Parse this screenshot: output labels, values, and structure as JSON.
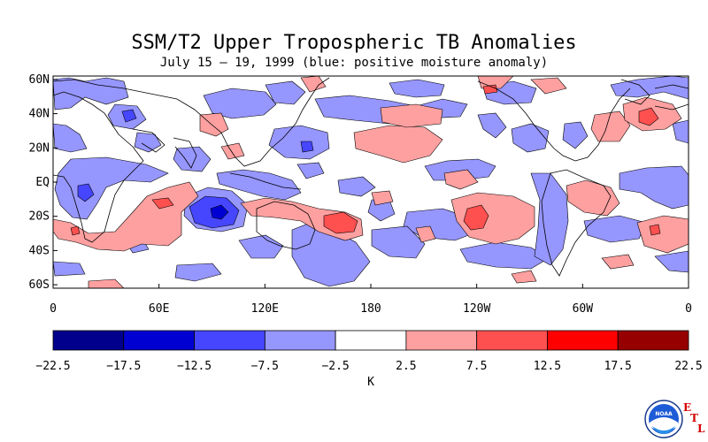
{
  "title": "SSM/T2 Upper Tropospheric TB Anomalies",
  "subtitle": "July 15 – 19, 1999 (blue: positive moisture anomaly)",
  "map": {
    "lat_labels": [
      "60N",
      "40N",
      "20N",
      "EQ",
      "20S",
      "40S",
      "60S"
    ],
    "lat_values": [
      60,
      40,
      20,
      0,
      -20,
      -40,
      -60
    ],
    "lon_labels": [
      "0",
      "60E",
      "120E",
      "180",
      "120W",
      "60W",
      "0"
    ],
    "lon_values": [
      0,
      60,
      120,
      180,
      240,
      300,
      360
    ],
    "lat_range": [
      -62,
      62
    ],
    "lon_range": [
      0,
      360
    ]
  },
  "colorbar": {
    "tick_labels": [
      "−22.5",
      "−17.5",
      "−12.5",
      "−7.5",
      "−2.5",
      "2.5",
      "7.5",
      "12.5",
      "17.5",
      "22.5"
    ],
    "colors": [
      "#00008c",
      "#0000d2",
      "#4646ff",
      "#9696ff",
      "#ffffff",
      "#ffa0a0",
      "#ff5050",
      "#ff0000",
      "#960000"
    ],
    "unit": "K"
  },
  "logo": {
    "org": "NOAA",
    "letters": [
      "E",
      "T",
      "L"
    ]
  },
  "colors": {
    "light_blue": "#9696ff",
    "medium_blue": "#4646ff",
    "dark_blue": "#0000d2",
    "light_red": "#ffa0a0",
    "medium_red": "#ff5050"
  }
}
